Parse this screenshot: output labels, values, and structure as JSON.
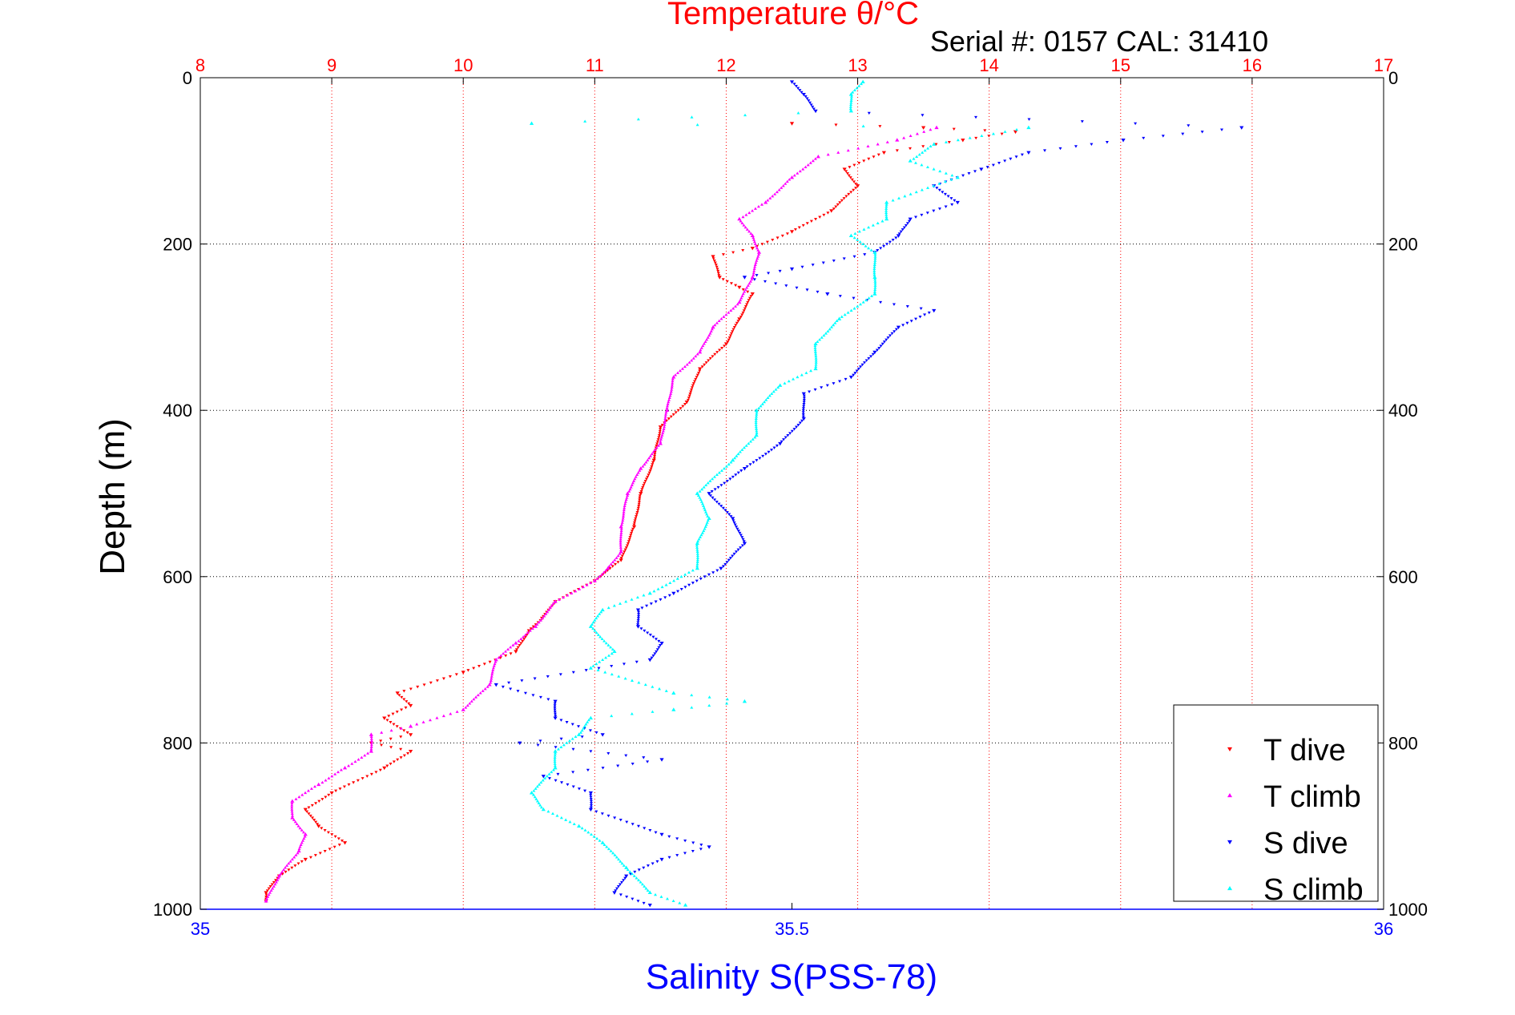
{
  "chart_data": {
    "type": "scatter",
    "title": "Temperature θ/°C",
    "subtitle": "Serial #: 0157  CAL: 31410",
    "ylabel": "Depth (m)",
    "xlabel_bottom": "Salinity S(PSS-78)",
    "y_reversed": true,
    "ylim": [
      0,
      1000
    ],
    "y_ticks": [
      "0",
      "200",
      "400",
      "600",
      "800",
      "1000"
    ],
    "x_top_lim": [
      8,
      17
    ],
    "x_top_ticks": [
      "8",
      "9",
      "10",
      "11",
      "12",
      "13",
      "14",
      "15",
      "16",
      "17"
    ],
    "x_bottom_lim": [
      35,
      36
    ],
    "x_bottom_ticks": [
      "35",
      "35.5",
      "36"
    ],
    "grid": true,
    "legend_position": "bottom-right",
    "colors": {
      "title": "#ff0000",
      "top_axis": "#ff0000",
      "bottom_axis": "#0000ff",
      "grid_vertical": "#ff0000",
      "grid_horizontal": "#000000"
    },
    "series": [
      {
        "name": "T dive",
        "axis": "top",
        "color": "#ff0000",
        "marker": "triangle-down",
        "points": [
          [
            12.5,
            55
          ],
          [
            13.5,
            60
          ],
          [
            14.2,
            65
          ],
          [
            13.8,
            75
          ],
          [
            13.2,
            90
          ],
          [
            12.9,
            110
          ],
          [
            13.0,
            130
          ],
          [
            12.8,
            160
          ],
          [
            12.5,
            185
          ],
          [
            12.2,
            205
          ],
          [
            11.9,
            215
          ],
          [
            11.95,
            240
          ],
          [
            12.1,
            252
          ],
          [
            12.2,
            260
          ],
          [
            12.1,
            290
          ],
          [
            12.0,
            320
          ],
          [
            11.8,
            350
          ],
          [
            11.7,
            390
          ],
          [
            11.5,
            420
          ],
          [
            11.45,
            460
          ],
          [
            11.35,
            500
          ],
          [
            11.3,
            540
          ],
          [
            11.2,
            580
          ],
          [
            11.0,
            605
          ],
          [
            10.7,
            630
          ],
          [
            10.6,
            650
          ],
          [
            10.5,
            665
          ],
          [
            10.4,
            690
          ],
          [
            10.0,
            715
          ],
          [
            9.5,
            740
          ],
          [
            9.6,
            755
          ],
          [
            9.4,
            770
          ],
          [
            9.6,
            790
          ],
          [
            9.3,
            800
          ],
          [
            9.6,
            810
          ],
          [
            9.4,
            830
          ],
          [
            9.0,
            860
          ],
          [
            8.8,
            880
          ],
          [
            8.9,
            900
          ],
          [
            9.1,
            920
          ],
          [
            8.8,
            940
          ],
          [
            8.6,
            960
          ],
          [
            8.5,
            980
          ],
          [
            8.5,
            990
          ]
        ]
      },
      {
        "name": "T climb",
        "axis": "top",
        "color": "#ff00ff",
        "marker": "triangle-up",
        "points": [
          [
            13.6,
            60
          ],
          [
            13.3,
            75
          ],
          [
            12.7,
            95
          ],
          [
            12.5,
            120
          ],
          [
            12.3,
            150
          ],
          [
            12.1,
            170
          ],
          [
            12.2,
            190
          ],
          [
            12.25,
            210
          ],
          [
            12.2,
            240
          ],
          [
            12.1,
            270
          ],
          [
            11.9,
            300
          ],
          [
            11.8,
            330
          ],
          [
            11.6,
            360
          ],
          [
            11.55,
            400
          ],
          [
            11.5,
            440
          ],
          [
            11.35,
            470
          ],
          [
            11.25,
            500
          ],
          [
            11.2,
            540
          ],
          [
            11.2,
            570
          ],
          [
            11.1,
            590
          ],
          [
            11.0,
            605
          ],
          [
            10.7,
            630
          ],
          [
            10.55,
            660
          ],
          [
            10.4,
            680
          ],
          [
            10.25,
            700
          ],
          [
            10.2,
            730
          ],
          [
            10.0,
            760
          ],
          [
            9.6,
            780
          ],
          [
            9.3,
            790
          ],
          [
            9.3,
            810
          ],
          [
            9.1,
            830
          ],
          [
            8.9,
            850
          ],
          [
            8.7,
            870
          ],
          [
            8.7,
            890
          ],
          [
            8.8,
            910
          ],
          [
            8.75,
            930
          ],
          [
            8.6,
            960
          ],
          [
            8.5,
            990
          ]
        ]
      },
      {
        "name": "S dive",
        "axis": "bottom",
        "color": "#0000ff",
        "marker": "triangle-down",
        "points": [
          [
            35.5,
            5
          ],
          [
            35.51,
            20
          ],
          [
            35.52,
            40
          ],
          [
            35.88,
            60
          ],
          [
            35.78,
            75
          ],
          [
            35.7,
            90
          ],
          [
            35.66,
            110
          ],
          [
            35.62,
            130
          ],
          [
            35.64,
            150
          ],
          [
            35.6,
            170
          ],
          [
            35.59,
            190
          ],
          [
            35.57,
            210
          ],
          [
            35.5,
            230
          ],
          [
            35.46,
            240
          ],
          [
            35.53,
            260
          ],
          [
            35.62,
            280
          ],
          [
            35.59,
            300
          ],
          [
            35.57,
            330
          ],
          [
            35.55,
            360
          ],
          [
            35.51,
            380
          ],
          [
            35.51,
            410
          ],
          [
            35.49,
            440
          ],
          [
            35.46,
            470
          ],
          [
            35.43,
            500
          ],
          [
            35.45,
            530
          ],
          [
            35.46,
            560
          ],
          [
            35.44,
            590
          ],
          [
            35.4,
            620
          ],
          [
            35.37,
            640
          ],
          [
            35.37,
            660
          ],
          [
            35.39,
            680
          ],
          [
            35.38,
            700
          ],
          [
            35.25,
            730
          ],
          [
            35.3,
            750
          ],
          [
            35.3,
            770
          ],
          [
            35.34,
            790
          ],
          [
            35.27,
            800
          ],
          [
            35.39,
            820
          ],
          [
            35.29,
            840
          ],
          [
            35.33,
            860
          ],
          [
            35.33,
            880
          ],
          [
            35.39,
            910
          ],
          [
            35.43,
            925
          ],
          [
            35.39,
            940
          ],
          [
            35.36,
            960
          ],
          [
            35.35,
            980
          ],
          [
            35.38,
            995
          ]
        ]
      },
      {
        "name": "S climb",
        "axis": "bottom",
        "color": "#00ffff",
        "marker": "triangle-up",
        "points": [
          [
            35.56,
            5
          ],
          [
            35.55,
            20
          ],
          [
            35.55,
            40
          ],
          [
            35.28,
            55
          ],
          [
            35.7,
            60
          ],
          [
            35.62,
            80
          ],
          [
            35.6,
            100
          ],
          [
            35.64,
            120
          ],
          [
            35.58,
            150
          ],
          [
            35.58,
            170
          ],
          [
            35.55,
            190
          ],
          [
            35.57,
            210
          ],
          [
            35.57,
            240
          ],
          [
            35.57,
            260
          ],
          [
            35.54,
            290
          ],
          [
            35.52,
            320
          ],
          [
            35.52,
            350
          ],
          [
            35.49,
            370
          ],
          [
            35.47,
            400
          ],
          [
            35.47,
            430
          ],
          [
            35.45,
            460
          ],
          [
            35.42,
            500
          ],
          [
            35.43,
            530
          ],
          [
            35.42,
            560
          ],
          [
            35.42,
            590
          ],
          [
            35.38,
            620
          ],
          [
            35.34,
            640
          ],
          [
            35.33,
            660
          ],
          [
            35.35,
            690
          ],
          [
            35.33,
            710
          ],
          [
            35.4,
            740
          ],
          [
            35.46,
            750
          ],
          [
            35.4,
            760
          ],
          [
            35.33,
            770
          ],
          [
            35.32,
            790
          ],
          [
            35.3,
            810
          ],
          [
            35.3,
            830
          ],
          [
            35.28,
            860
          ],
          [
            35.29,
            880
          ],
          [
            35.32,
            900
          ],
          [
            35.34,
            920
          ],
          [
            35.36,
            950
          ],
          [
            35.38,
            980
          ],
          [
            35.41,
            995
          ]
        ]
      }
    ]
  }
}
